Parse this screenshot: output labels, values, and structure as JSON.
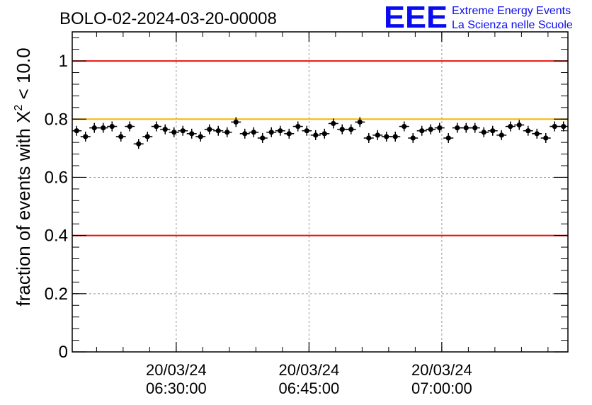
{
  "chart_data": {
    "type": "scatter",
    "title": "BOLO-02-2024-03-20-00008",
    "ylabel_prefix": "fraction of events with ",
    "ylabel_symbol": "X",
    "ylabel_exponent": "2",
    "ylabel_suffix": " < 10.0",
    "ylim": [
      0,
      1.1
    ],
    "yticks": [
      {
        "v": 0,
        "label": "0"
      },
      {
        "v": 0.2,
        "label": "0.2"
      },
      {
        "v": 0.4,
        "label": "0.4"
      },
      {
        "v": 0.6,
        "label": "0.6"
      },
      {
        "v": 0.8,
        "label": "0.8"
      },
      {
        "v": 1,
        "label": "1"
      }
    ],
    "xticks": [
      {
        "date": "20/03/24",
        "time": "06:30:00"
      },
      {
        "date": "20/03/24",
        "time": "06:45:00"
      },
      {
        "date": "20/03/24",
        "time": "07:00:00"
      }
    ],
    "grid": true,
    "reference_lines": [
      {
        "y": 1.0,
        "color": "#e8140c"
      },
      {
        "y": 0.8,
        "color": "#f5b800"
      },
      {
        "y": 0.4,
        "color": "#e8140c"
      }
    ],
    "series": [
      {
        "color": "#000000",
        "x": [
          "06:18:45",
          "06:19:45",
          "06:20:45",
          "06:21:45",
          "06:22:45",
          "06:23:45",
          "06:24:45",
          "06:25:45",
          "06:26:45",
          "06:27:45",
          "06:28:45",
          "06:29:45",
          "06:30:45",
          "06:31:45",
          "06:32:45",
          "06:33:45",
          "06:34:45",
          "06:35:45",
          "06:36:45",
          "06:37:45",
          "06:38:45",
          "06:39:45",
          "06:40:45",
          "06:41:45",
          "06:42:45",
          "06:43:45",
          "06:44:45",
          "06:45:45",
          "06:46:45",
          "06:47:45",
          "06:48:45",
          "06:49:45",
          "06:50:45",
          "06:51:45",
          "06:52:45",
          "06:53:45",
          "06:54:45",
          "06:55:45",
          "06:56:45",
          "06:57:45",
          "06:58:45",
          "06:59:45",
          "07:00:45",
          "07:01:45",
          "07:02:45",
          "07:03:45",
          "07:04:45",
          "07:05:45",
          "07:06:45",
          "07:07:45",
          "07:08:45",
          "07:09:45",
          "07:10:45",
          "07:11:45",
          "07:12:45",
          "07:13:45"
        ],
        "y": [
          0.76,
          0.74,
          0.77,
          0.77,
          0.775,
          0.74,
          0.775,
          0.715,
          0.74,
          0.775,
          0.765,
          0.755,
          0.76,
          0.75,
          0.74,
          0.765,
          0.76,
          0.755,
          0.79,
          0.75,
          0.755,
          0.735,
          0.755,
          0.76,
          0.75,
          0.775,
          0.76,
          0.745,
          0.75,
          0.785,
          0.765,
          0.765,
          0.79,
          0.735,
          0.745,
          0.74,
          0.74,
          0.775,
          0.735,
          0.76,
          0.765,
          0.77,
          0.735,
          0.77,
          0.77,
          0.77,
          0.755,
          0.76,
          0.745,
          0.775,
          0.78,
          0.76,
          0.75,
          0.735,
          0.775,
          0.775
        ]
      }
    ]
  },
  "logo": {
    "mark": "EEE",
    "line1": "Extreme Energy Events",
    "line2": "La Scienza nelle Scuole",
    "color": "#0b0bf2"
  }
}
